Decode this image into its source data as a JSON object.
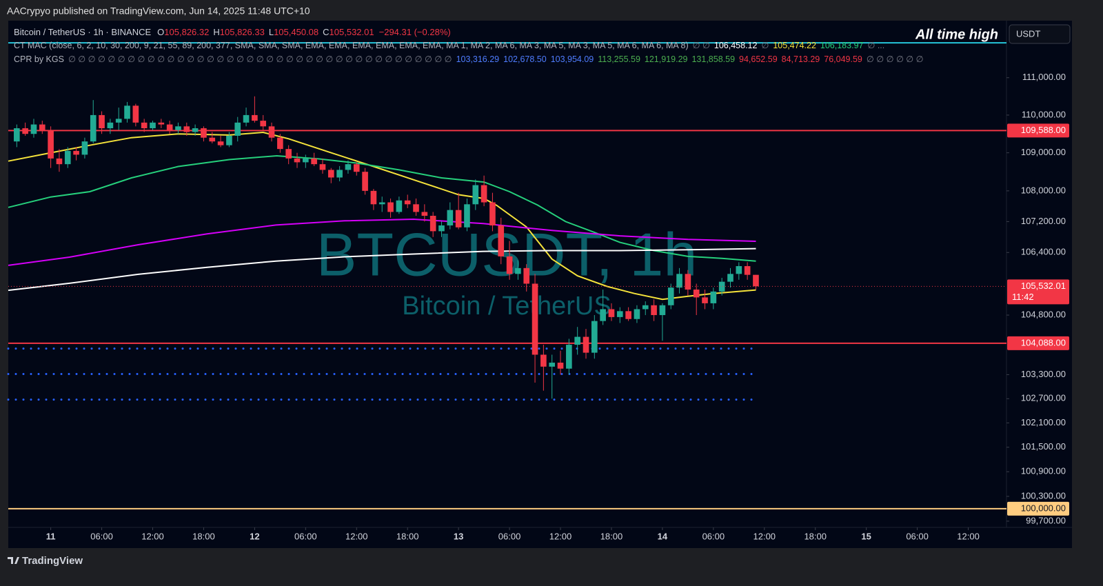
{
  "header": {
    "title": "AACrypyo published on TradingView.com, Jun 14, 2025 11:48 UTC+10",
    "brand": "TradingView"
  },
  "legend": {
    "symbol": "Bitcoin / TetherUS · 1h · BINANCE",
    "ohlc": [
      {
        "key": "O",
        "value": "105,826.32"
      },
      {
        "key": "H",
        "value": "105,826.33"
      },
      {
        "key": "L",
        "value": "105,450.08"
      },
      {
        "key": "C",
        "value": "105,532.01"
      }
    ],
    "change": "−294.31 (−0.28%)",
    "indicators": [
      {
        "name": "CT MAC (close, 6, 2, 10, 30, 200, 9, 21, 55, 89, 200, 377, SMA, SMA, SMA, EMA, EMA, EMA, EMA, EMA, EMA, MA 1, MA 2, MA 6, MA 3, MA 5, MA 3, MA 5, MA 6, MA 6, MA 8)",
        "items": [
          {
            "text": "∅ ∅",
            "color": "#787b86"
          },
          {
            "text": "106,458.12",
            "color": "#ffffff"
          },
          {
            "text": "∅",
            "color": "#787b86"
          },
          {
            "text": "105,474.22",
            "color": "#f5e33b"
          },
          {
            "text": "106,183.97",
            "color": "#26d07c"
          },
          {
            "text": "∅ ...",
            "color": "#787b86"
          }
        ]
      },
      {
        "name": "CPR by KGS",
        "items": [
          {
            "text": "∅ ∅ ∅ ∅ ∅ ∅ ∅ ∅ ∅ ∅ ∅ ∅ ∅ ∅ ∅ ∅ ∅ ∅ ∅ ∅ ∅ ∅ ∅ ∅ ∅ ∅ ∅ ∅ ∅ ∅ ∅ ∅ ∅ ∅ ∅ ∅ ∅ ∅ ∅",
            "color": "#787b86"
          },
          {
            "text": "103,316.29",
            "color": "#4f7dff"
          },
          {
            "text": "102,678.50",
            "color": "#4f7dff"
          },
          {
            "text": "103,954.09",
            "color": "#4f7dff"
          },
          {
            "text": "113,255.59",
            "color": "#4caf50"
          },
          {
            "text": "121,919.29",
            "color": "#4caf50"
          },
          {
            "text": "131,858.59",
            "color": "#4caf50"
          },
          {
            "text": "94,652.59",
            "color": "#f23645"
          },
          {
            "text": "84,713.29",
            "color": "#f23645"
          },
          {
            "text": "76,049.59",
            "color": "#f23645"
          },
          {
            "text": "∅ ∅ ∅ ∅ ∅ ∅",
            "color": "#787b86"
          }
        ]
      }
    ]
  },
  "annotation": "All time high",
  "currency": "USDT",
  "watermark": {
    "symbol": "BTCUSDT, 1h",
    "description": "Bitcoin / TetherUS"
  },
  "chart_data": {
    "type": "candlestick",
    "log_scale": true,
    "up_color": "#22ab94",
    "down_color": "#f23645",
    "x": [
      -4,
      -3,
      -2,
      -1,
      0,
      1,
      2,
      3,
      4,
      5,
      6,
      7,
      8,
      9,
      10,
      11,
      12,
      13,
      14,
      15,
      16,
      17,
      18,
      19,
      20,
      21,
      22,
      23,
      24,
      25,
      26,
      27,
      28,
      29,
      30,
      31,
      32,
      33,
      34,
      35,
      36,
      37,
      38,
      39,
      40,
      41,
      42,
      43,
      44,
      45,
      46,
      47,
      48,
      49,
      50,
      51,
      52,
      53,
      54,
      55,
      56,
      57,
      58,
      59,
      60,
      61,
      62,
      63,
      64,
      65,
      66,
      67,
      68,
      69,
      70,
      71,
      72,
      73,
      74,
      75,
      76,
      77,
      78,
      79,
      80,
      81,
      82,
      83
    ],
    "open": [
      109300,
      109650,
      109500,
      109750,
      109600,
      108850,
      108700,
      109050,
      108950,
      109300,
      110000,
      109650,
      109800,
      109900,
      110250,
      109800,
      109650,
      109800,
      109750,
      109600,
      109700,
      109550,
      109650,
      109400,
      109300,
      109200,
      109450,
      109800,
      110000,
      109850,
      109700,
      109400,
      109100,
      108850,
      108750,
      108850,
      108700,
      108550,
      108350,
      108550,
      108700,
      108500,
      108000,
      107650,
      107700,
      107450,
      107750,
      107650,
      107450,
      107350,
      106950,
      107100,
      107500,
      107050,
      107650,
      108150,
      107700,
      107100,
      106300,
      105850,
      106000,
      105600,
      103800,
      103500,
      103600,
      103450,
      104050,
      104250,
      103850,
      104650,
      104950,
      104750,
      104900,
      104700,
      104950,
      105050,
      104800,
      105050,
      105500,
      105850,
      105450,
      105250,
      105100,
      105400,
      105650,
      105850,
      106050,
      105826.32
    ],
    "high": [
      109750,
      109800,
      109900,
      109850,
      109700,
      109100,
      109150,
      109150,
      109400,
      110400,
      110100,
      109900,
      110200,
      110350,
      110300,
      109900,
      109850,
      109900,
      109850,
      109800,
      109800,
      109750,
      109700,
      109550,
      109450,
      109550,
      109950,
      110200,
      110500,
      110000,
      109800,
      109500,
      109200,
      109000,
      108950,
      109000,
      108850,
      108600,
      108650,
      108800,
      108750,
      108600,
      108050,
      107850,
      107800,
      107850,
      107900,
      107800,
      107650,
      107450,
      107200,
      107700,
      107950,
      107800,
      108300,
      108400,
      107950,
      107300,
      106700,
      106200,
      106100,
      105850,
      104050,
      103800,
      103900,
      104200,
      104500,
      104450,
      104800,
      105450,
      105100,
      105000,
      105000,
      105050,
      105150,
      105200,
      105100,
      105600,
      106000,
      105950,
      105600,
      105450,
      105500,
      105750,
      106000,
      106150,
      106150,
      105826.33
    ],
    "low": [
      109150,
      109450,
      109400,
      109500,
      108600,
      108500,
      108600,
      108800,
      108850,
      109250,
      109500,
      109500,
      109600,
      109800,
      109700,
      109550,
      109600,
      109650,
      109500,
      109500,
      109450,
      109450,
      109300,
      109250,
      109150,
      109150,
      109300,
      109700,
      109800,
      109600,
      109300,
      109000,
      108700,
      108600,
      108600,
      108650,
      108450,
      108200,
      108250,
      108450,
      108400,
      107900,
      107500,
      107450,
      107300,
      107400,
      107550,
      107350,
      107200,
      106800,
      106800,
      107000,
      107000,
      106950,
      107500,
      107600,
      106950,
      106100,
      105700,
      105700,
      105400,
      103100,
      102900,
      102700,
      103300,
      103300,
      103800,
      103700,
      103700,
      104550,
      104650,
      104600,
      104650,
      104600,
      104800,
      104650,
      104150,
      104950,
      105350,
      105300,
      104800,
      104950,
      104950,
      105300,
      105500,
      105700,
      105700,
      105450.08
    ],
    "close": [
      109650,
      109500,
      109750,
      109600,
      108850,
      108700,
      109050,
      108950,
      109300,
      110000,
      109650,
      109800,
      109900,
      110250,
      109800,
      109650,
      109800,
      109750,
      109600,
      109700,
      109550,
      109650,
      109400,
      109300,
      109200,
      109450,
      109800,
      110000,
      109850,
      109700,
      109400,
      109100,
      108850,
      108750,
      108850,
      108700,
      108550,
      108350,
      108550,
      108700,
      108500,
      108000,
      107650,
      107700,
      107450,
      107750,
      107650,
      107450,
      107350,
      106950,
      107100,
      107500,
      107050,
      107650,
      108150,
      107700,
      107100,
      106300,
      105850,
      106000,
      105600,
      103800,
      103500,
      103600,
      103450,
      104050,
      104250,
      103850,
      104650,
      104950,
      104750,
      104900,
      104700,
      104950,
      105050,
      104800,
      105050,
      105500,
      105850,
      105450,
      105250,
      105100,
      105400,
      105650,
      105850,
      106050,
      105826.32,
      105532.01
    ],
    "last_price_label": "105,532.01",
    "countdown": "11:42",
    "last_price_color": "#f23645",
    "lines": [
      {
        "color": "#f5e33b",
        "x": [
          -5,
          0,
          4.6,
          9.5,
          15,
          21,
          25,
          28,
          33,
          38,
          43,
          48,
          51,
          52.5,
          56,
          59,
          62,
          65.5,
          68.7,
          72,
          75,
          78,
          83
        ],
        "values": [
          108780,
          109000,
          109200,
          109400,
          109500,
          109470,
          109540,
          109370,
          109000,
          108640,
          108270,
          107900,
          107800,
          107620,
          107060,
          106230,
          105800,
          105530,
          105350,
          105200,
          105280,
          105350,
          105440
        ]
      },
      {
        "color": "#26d07c",
        "x": [
          -5,
          0,
          4.6,
          9.5,
          15,
          21,
          26.6,
          31.5,
          36,
          41,
          46,
          51,
          54,
          57.3,
          60.6,
          64,
          67,
          71,
          75,
          79,
          83
        ],
        "values": [
          107570,
          107840,
          107980,
          108340,
          108640,
          108820,
          108920,
          108840,
          108730,
          108550,
          108340,
          108230,
          107980,
          107630,
          107200,
          106920,
          106660,
          106450,
          106300,
          106250,
          106180
        ]
      },
      {
        "color": "#d500f9",
        "x": [
          -5,
          2.2,
          10.3,
          18.4,
          26.5,
          34.6,
          42.7,
          50.9,
          59,
          67,
          75,
          83
        ],
        "values": [
          106070,
          106280,
          106600,
          106880,
          107110,
          107220,
          107260,
          107150,
          106970,
          106830,
          106740,
          106690
        ]
      },
      {
        "color": "#ffffff",
        "x": [
          -5,
          2.2,
          10.3,
          18.4,
          26.5,
          34.6,
          42.7,
          50.9,
          59,
          67,
          75,
          83
        ],
        "values": [
          105430,
          105610,
          105840,
          106020,
          106180,
          106290,
          106360,
          106430,
          106450,
          106450,
          106470,
          106500
        ]
      }
    ],
    "levels": [
      {
        "value": 111940,
        "color": "#26c6da"
      },
      {
        "value": 109588,
        "color": "#f23645",
        "label": "109,588.00",
        "label_text_color": "#ffffff"
      },
      {
        "value": 104088,
        "color": "#f23645",
        "label": "104,088.00",
        "label_text_color": "#ffffff"
      },
      {
        "value": 100000,
        "color": "#ffcc80",
        "label": "100,000.00",
        "label_text_color": "#131722"
      }
    ],
    "cpr_levels": {
      "color": "#2962ff",
      "x_end": 83,
      "values": [
        103954.09,
        103316.29,
        102678.5
      ]
    },
    "xlim": [
      -5,
      112.5
    ],
    "xticks": [
      {
        "value": 0,
        "label": "11"
      },
      {
        "value": 6,
        "label": "06:00"
      },
      {
        "value": 12,
        "label": "12:00"
      },
      {
        "value": 18,
        "label": "18:00"
      },
      {
        "value": 24,
        "label": "12"
      },
      {
        "value": 30,
        "label": "06:00"
      },
      {
        "value": 36,
        "label": "12:00"
      },
      {
        "value": 42,
        "label": "18:00"
      },
      {
        "value": 48,
        "label": "13"
      },
      {
        "value": 54,
        "label": "06:00"
      },
      {
        "value": 60,
        "label": "12:00"
      },
      {
        "value": 66,
        "label": "18:00"
      },
      {
        "value": 72,
        "label": "14"
      },
      {
        "value": 78,
        "label": "06:00"
      },
      {
        "value": 84,
        "label": "12:00"
      },
      {
        "value": 90,
        "label": "18:00"
      },
      {
        "value": 96,
        "label": "15"
      },
      {
        "value": 102,
        "label": "06:00"
      },
      {
        "value": 108,
        "label": "12:00"
      }
    ],
    "day_ticks": [
      0,
      4,
      8,
      12,
      16
    ],
    "ylim": [
      99549,
      112543
    ],
    "yticks": [
      {
        "value": 111000,
        "label": "111,000.00"
      },
      {
        "value": 110000,
        "label": "110,000.00"
      },
      {
        "value": 109000,
        "label": "109,000.00"
      },
      {
        "value": 108000,
        "label": "108,000.00"
      },
      {
        "value": 107200,
        "label": "107,200.00"
      },
      {
        "value": 106400,
        "label": "106,400.00"
      },
      {
        "value": 104800,
        "label": "104,800.00"
      },
      {
        "value": 103300,
        "label": "103,300.00"
      },
      {
        "value": 102700,
        "label": "102,700.00"
      },
      {
        "value": 102100,
        "label": "102,100.00"
      },
      {
        "value": 101500,
        "label": "101,500.00"
      },
      {
        "value": 100900,
        "label": "100,900.00"
      },
      {
        "value": 100300,
        "label": "100,300.00"
      },
      {
        "value": 99700,
        "label": "99,700.00"
      }
    ]
  }
}
